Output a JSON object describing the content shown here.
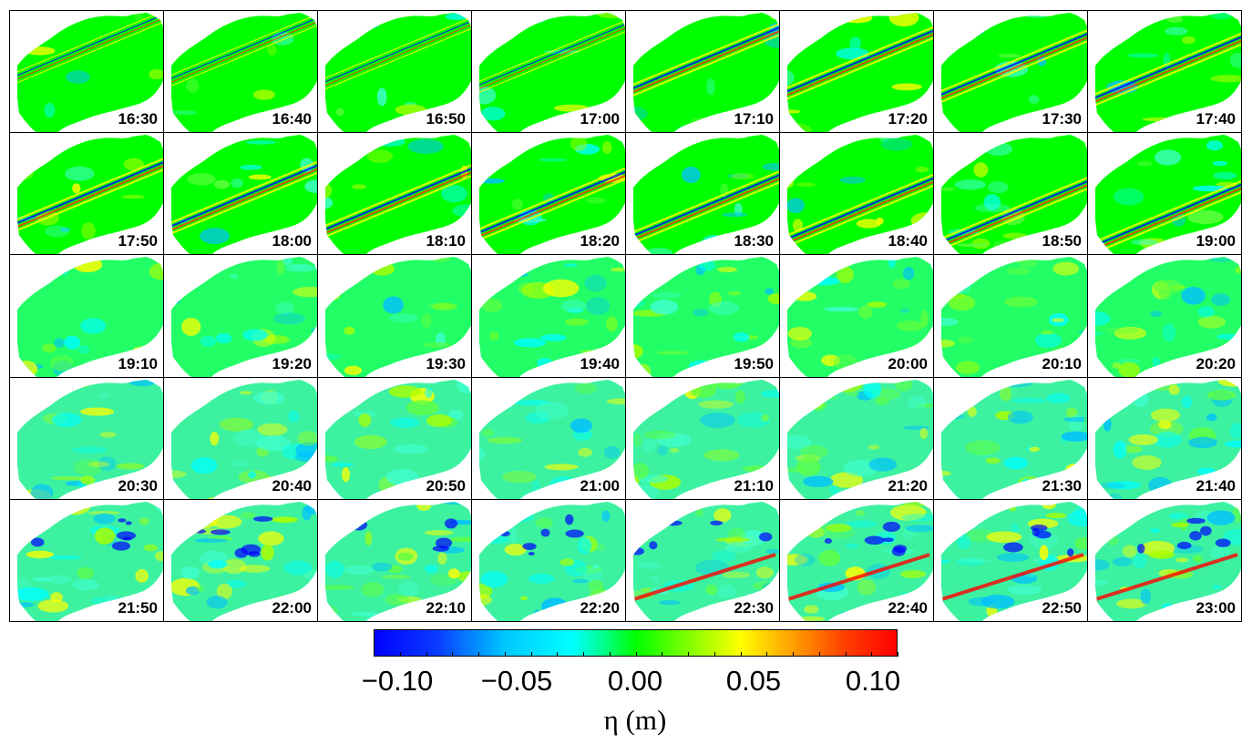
{
  "panels": [
    "16:30",
    "16:40",
    "16:50",
    "17:00",
    "17:10",
    "17:20",
    "17:30",
    "17:40",
    "17:50",
    "18:00",
    "18:10",
    "18:20",
    "18:30",
    "18:40",
    "18:50",
    "19:00",
    "19:10",
    "19:20",
    "19:30",
    "19:40",
    "19:50",
    "20:00",
    "20:10",
    "20:20",
    "20:30",
    "20:40",
    "20:50",
    "21:00",
    "21:10",
    "21:20",
    "21:30",
    "21:40",
    "21:50",
    "22:00",
    "22:10",
    "22:20",
    "22:30",
    "22:40",
    "22:50",
    "23:00"
  ],
  "colorbar": {
    "ticks": [
      "−0.10",
      "−0.05",
      "0.00",
      "0.05",
      "0.10"
    ],
    "unit": "η (m)",
    "colors": {
      "low": "#0000ff",
      "mid": "#00ff00",
      "high": "#ff0000",
      "background": "#ffffff"
    }
  }
}
